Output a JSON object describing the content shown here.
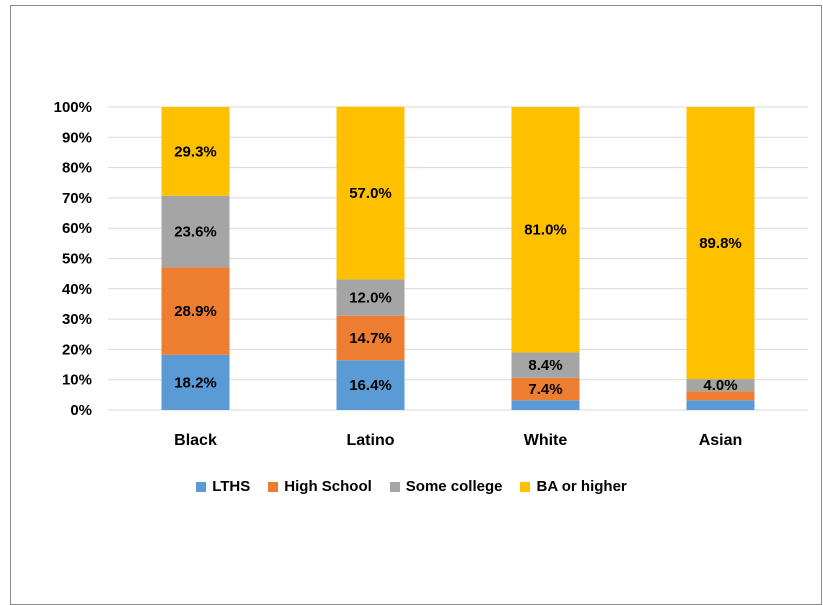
{
  "chart_data": {
    "type": "bar",
    "stacked": true,
    "categories": [
      "Black",
      "Latino",
      "White",
      "Asian"
    ],
    "series": [
      {
        "name": "LTHS",
        "color": "#5B9BD5",
        "values": [
          18.2,
          16.4,
          3.2,
          3.2
        ],
        "labels": [
          "18.2%",
          "16.4%",
          "",
          ""
        ]
      },
      {
        "name": "High School",
        "color": "#ED7D31",
        "values": [
          28.9,
          14.7,
          7.4,
          3.0
        ],
        "labels": [
          "28.9%",
          "14.7%",
          "7.4%",
          ""
        ]
      },
      {
        "name": "Some college",
        "color": "#A5A5A5",
        "values": [
          23.6,
          12.0,
          8.4,
          4.0
        ],
        "labels": [
          "23.6%",
          "12.0%",
          "8.4%",
          "4.0%"
        ]
      },
      {
        "name": "BA or higher",
        "color": "#FFC000",
        "values": [
          29.3,
          57.0,
          81.0,
          89.8
        ],
        "labels": [
          "29.3%",
          "57.0%",
          "81.0%",
          "89.8%"
        ]
      }
    ],
    "yticks": [
      "0%",
      "10%",
      "20%",
      "30%",
      "40%",
      "50%",
      "60%",
      "70%",
      "80%",
      "90%",
      "100%"
    ],
    "ylim": [
      0,
      100
    ],
    "grid": true,
    "legend": "bottom",
    "title": "",
    "xlabel": "",
    "ylabel": ""
  }
}
